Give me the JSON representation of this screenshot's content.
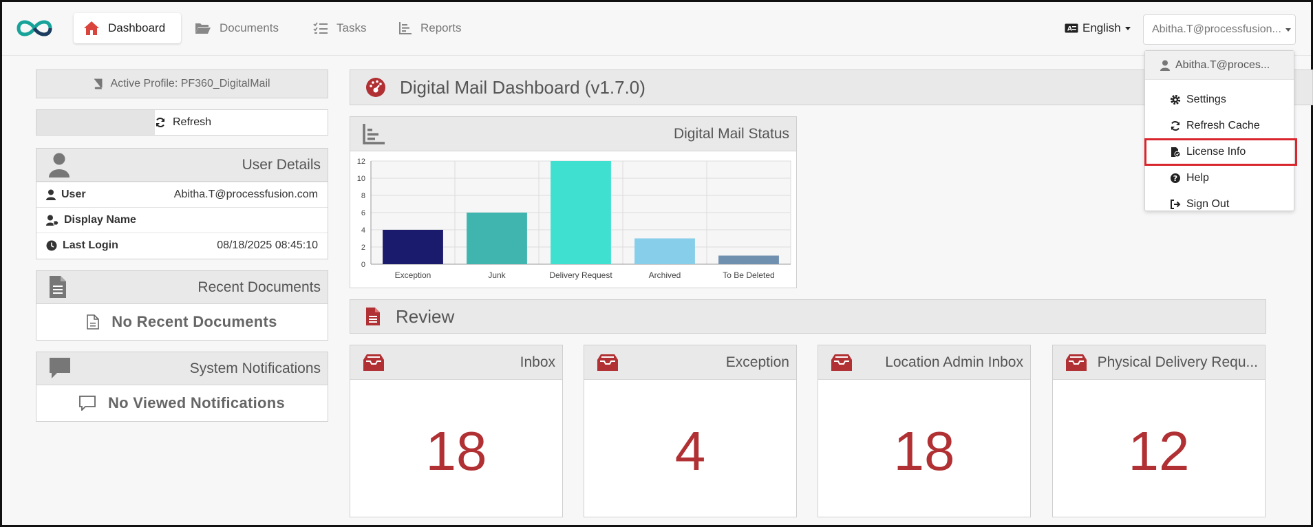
{
  "nav": {
    "tabs": [
      {
        "label": "Dashboard",
        "icon": "home-icon",
        "active": true
      },
      {
        "label": "Documents",
        "icon": "folder-open-icon"
      },
      {
        "label": "Tasks",
        "icon": "tasks-icon"
      },
      {
        "label": "Reports",
        "icon": "chart-icon"
      }
    ],
    "language": "English",
    "user_button": "Abitha.T@processfusion..."
  },
  "dropdown": {
    "header": "Abitha.T@proces...",
    "items": [
      {
        "label": "Settings",
        "icon": "gear-icon"
      },
      {
        "label": "Refresh Cache",
        "icon": "sync-icon"
      },
      {
        "label": "License Info",
        "icon": "license-icon",
        "highlighted": true
      },
      {
        "label": "Help",
        "icon": "help-icon"
      },
      {
        "label": "Sign Out",
        "icon": "sign-out-icon"
      }
    ]
  },
  "profile": {
    "active_profile": "Active Profile: PF360_DigitalMail"
  },
  "refresh_label": "Refresh",
  "user_details": {
    "title": "User Details",
    "rows": [
      {
        "label": "User",
        "value": "Abitha.T@processfusion.com",
        "icon": "user-icon"
      },
      {
        "label": "Display Name",
        "value": "",
        "icon": "user-tag-icon"
      },
      {
        "label": "Last Login",
        "value": "08/18/2025 08:45:10",
        "icon": "clock-icon"
      }
    ]
  },
  "recent_documents": {
    "title": "Recent Documents",
    "empty": "No Recent Documents"
  },
  "system_notifications": {
    "title": "System Notifications",
    "empty": "No Viewed Notifications"
  },
  "dashboard_title": "Digital Mail Dashboard (v1.7.0)",
  "chart_panel_title": "Digital Mail Status",
  "chart_data": {
    "type": "bar",
    "categories": [
      "Exception",
      "Junk",
      "Delivery Request",
      "Archived",
      "To Be Deleted"
    ],
    "values": [
      4,
      6,
      12,
      3,
      1
    ],
    "colors": [
      "#1b1b6e",
      "#40b5b0",
      "#40e0d0",
      "#87ceeb",
      "#7090b0"
    ],
    "ylim": [
      0,
      12
    ],
    "yticks": [
      0,
      2,
      4,
      6,
      8,
      10,
      12
    ],
    "grid": true
  },
  "review": {
    "title": "Review",
    "cards": [
      {
        "title": "Inbox",
        "count": "18"
      },
      {
        "title": "Exception",
        "count": "4"
      },
      {
        "title": "Location Admin Inbox",
        "count": "18"
      },
      {
        "title": "Physical Delivery Requ...",
        "count": "12"
      }
    ]
  },
  "colors": {
    "accent": "#b03033",
    "highlight_border": "#d9252c",
    "logo_teal": "#17a39a",
    "logo_navy": "#1d3a5f"
  }
}
